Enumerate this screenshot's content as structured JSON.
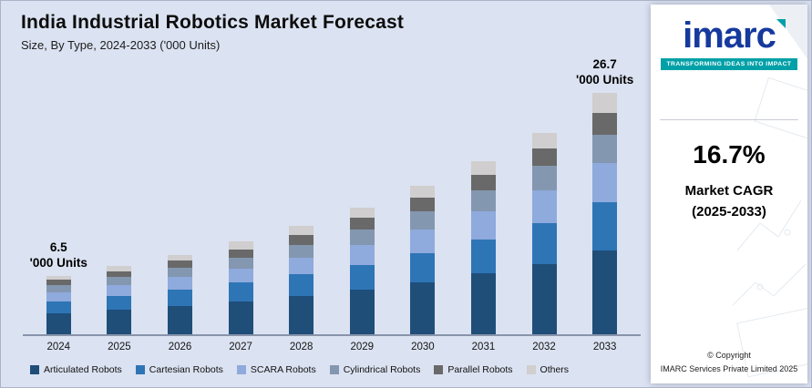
{
  "chart_data": {
    "type": "bar",
    "stacked": true,
    "title": "India Industrial Robotics Market Forecast",
    "subtitle": "Size, By Type, 2024-2033 ('000 Units)",
    "categories": [
      "2024",
      "2025",
      "2026",
      "2027",
      "2028",
      "2029",
      "2030",
      "2031",
      "2032",
      "2033"
    ],
    "series": [
      {
        "name": "Articulated Robots",
        "color": "#1f4e79",
        "values": [
          2.3,
          2.7,
          3.1,
          3.6,
          4.2,
          4.9,
          5.7,
          6.7,
          7.8,
          9.3
        ]
      },
      {
        "name": "Cartesian Robots",
        "color": "#2e75b6",
        "values": [
          1.3,
          1.5,
          1.8,
          2.1,
          2.4,
          2.8,
          3.3,
          3.8,
          4.5,
          5.3
        ]
      },
      {
        "name": "SCARA Robots",
        "color": "#8faadc",
        "values": [
          1.0,
          1.2,
          1.4,
          1.6,
          1.9,
          2.2,
          2.6,
          3.1,
          3.6,
          4.3
        ]
      },
      {
        "name": "Cylindrical Robots",
        "color": "#8497b0",
        "values": [
          0.8,
          0.9,
          1.1,
          1.2,
          1.4,
          1.7,
          2.0,
          2.3,
          2.7,
          3.2
        ]
      },
      {
        "name": "Parallel Robots",
        "color": "#696969",
        "values": [
          0.6,
          0.7,
          0.8,
          0.9,
          1.1,
          1.3,
          1.5,
          1.7,
          2.0,
          2.4
        ]
      },
      {
        "name": "Others",
        "color": "#d0cece",
        "values": [
          0.5,
          0.6,
          0.6,
          0.9,
          1.0,
          1.1,
          1.3,
          1.5,
          1.7,
          2.2
        ]
      }
    ],
    "annotations": [
      {
        "category_index": 0,
        "value": "6.5",
        "unit": "'000 Units"
      },
      {
        "category_index": 9,
        "value": "26.7",
        "unit": "'000 Units"
      }
    ],
    "ylim": [
      0,
      28
    ],
    "unit": "'000 Units",
    "legend_position": "bottom",
    "grid": false
  },
  "brand": {
    "logo_text": "imarc",
    "tagline": "TRANSFORMING IDEAS INTO IMPACT",
    "cagr_value": "16.7%",
    "cagr_label_line1": "Market CAGR",
    "cagr_label_line2": "(2025-2033)",
    "copyright_line1": "© Copyright",
    "copyright_line2": "IMARC Services Private Limited 2025",
    "accent_color": "#00a0a8",
    "logo_color": "#16399e"
  }
}
